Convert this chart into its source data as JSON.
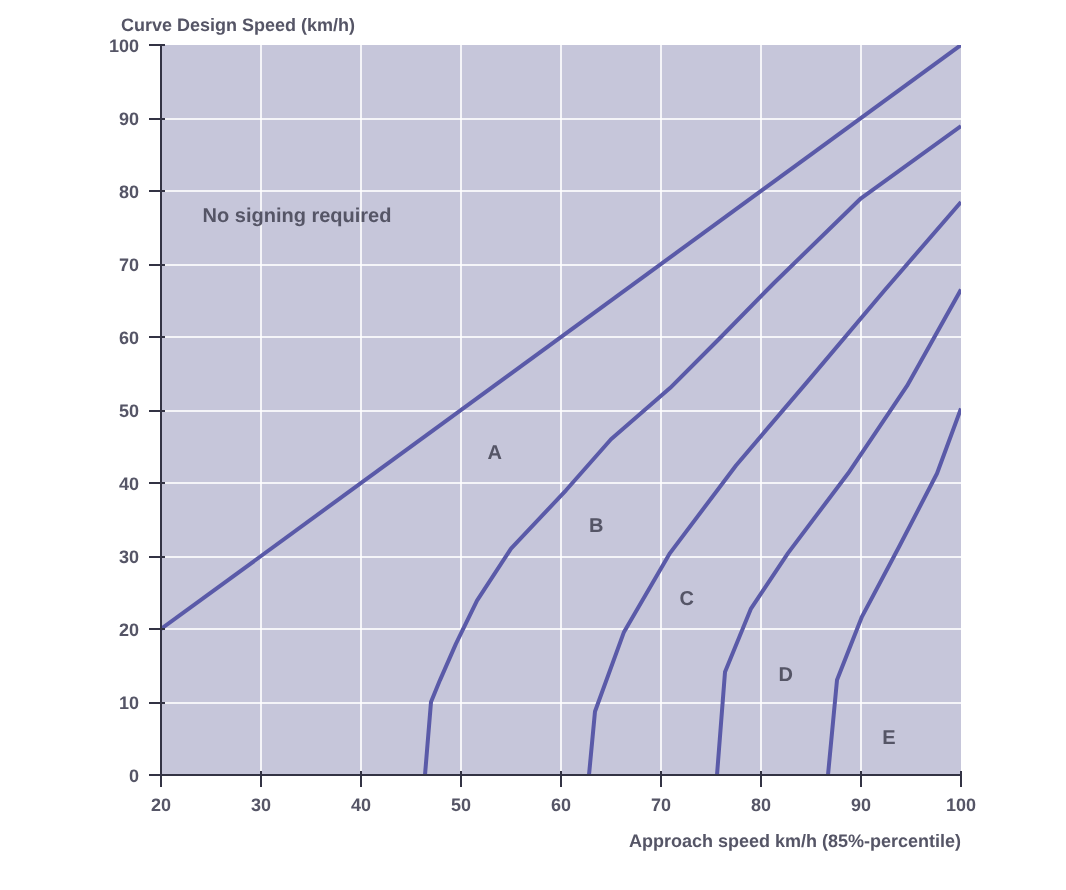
{
  "chart_data": {
    "type": "line",
    "ylabel": "Curve Design Speed (km/h)",
    "xlabel": "Approach speed km/h (85%-percentile)",
    "xlim": [
      20,
      100
    ],
    "ylim": [
      0,
      100
    ],
    "xticks": [
      20,
      30,
      40,
      50,
      60,
      70,
      80,
      90,
      100
    ],
    "yticks": [
      0,
      10,
      20,
      30,
      40,
      50,
      60,
      70,
      80,
      90,
      100
    ],
    "grid": true,
    "marker": "none",
    "line_style": "solid",
    "series": [
      {
        "color": "#5a5aa8",
        "x": [
          20,
          100
        ],
        "values": [
          20,
          100
        ]
      },
      {
        "color": "#5a5aa8",
        "x": [
          46.4,
          47,
          47.9,
          49.5,
          51.6,
          55,
          60.5,
          65,
          70.9,
          76,
          81.3,
          90,
          100
        ],
        "values": [
          0,
          10,
          13,
          18,
          23.9,
          31,
          39,
          46,
          53,
          60,
          67.4,
          79,
          88.9
        ]
      },
      {
        "color": "#5a5aa8",
        "x": [
          62.8,
          63.4,
          66.3,
          70.9,
          77.5,
          84.9,
          92.3,
          100
        ],
        "values": [
          0,
          8.7,
          19.6,
          30.4,
          42.4,
          54.3,
          66.3,
          78.5
        ]
      },
      {
        "color": "#5a5aa8",
        "x": [
          75.6,
          76.4,
          79,
          82.7,
          88.7,
          94.6,
          100
        ],
        "values": [
          0,
          14.1,
          22.8,
          30.4,
          41.3,
          53.3,
          66.5
        ]
      },
      {
        "color": "#5a5aa8",
        "x": [
          86.7,
          87.6,
          90.1,
          93.9,
          97.6,
          100
        ],
        "values": [
          0,
          13,
          21.7,
          31.5,
          41.3,
          50.2
        ]
      }
    ],
    "annotations": [
      "No signing required",
      "A",
      "B",
      "C",
      "D",
      "E"
    ]
  }
}
